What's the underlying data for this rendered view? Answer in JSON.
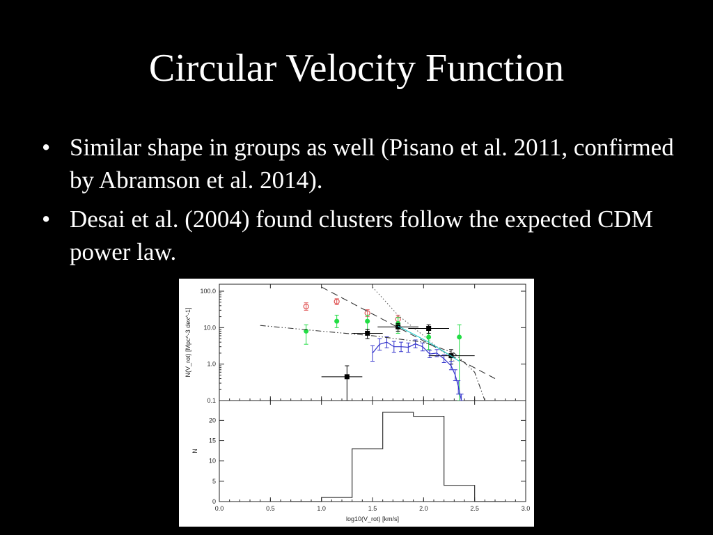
{
  "slide": {
    "title": "Circular Velocity Function",
    "bullet_glyph": "•",
    "bullets": [
      "Similar shape in groups as well (Pisano et al. 2011, confirmed by Abramson et al. 2014).",
      "Desai et al. (2004) found clusters follow the expected CDM power law."
    ]
  },
  "chart_data": [
    {
      "type": "scatter",
      "ylabel": "N(V_rot) [Mpc^-3 dex^-1]",
      "xlim": [
        0.0,
        3.0
      ],
      "ylim": [
        0.1,
        100.0
      ],
      "y_scale": "log",
      "y_ticks": [
        "100.0",
        "10.0",
        "1.0",
        "0.1"
      ],
      "x_tick_labels_shown": false,
      "series": [
        {
          "marker": "open-circle",
          "color": "#e05555",
          "points": [
            {
              "x": 0.85,
              "y": 38,
              "yerr": [
                30,
                48
              ]
            },
            {
              "x": 1.15,
              "y": 52,
              "yerr": [
                43,
                62
              ]
            },
            {
              "x": 1.45,
              "y": 25,
              "yerr": [
                20,
                31
              ]
            },
            {
              "x": 1.75,
              "y": 17,
              "yerr": [
                13,
                22
              ]
            }
          ]
        },
        {
          "marker": "filled-circle",
          "color": "#22dd44",
          "points": [
            {
              "x": 0.85,
              "y": 8,
              "yerr": [
                3.5,
                12
              ]
            },
            {
              "x": 1.15,
              "y": 15,
              "yerr": [
                10,
                22
              ]
            },
            {
              "x": 1.45,
              "y": 15,
              "yerr": [
                9,
                22
              ]
            },
            {
              "x": 1.75,
              "y": 13,
              "yerr": [
                7,
                19
              ]
            },
            {
              "x": 2.05,
              "y": 5.5,
              "yerr": [
                2.5,
                9
              ]
            },
            {
              "x": 2.35,
              "y": 5.5,
              "yerr": [
                0.1,
                12
              ]
            }
          ]
        },
        {
          "marker": "filled-square",
          "color": "#000000",
          "points": [
            {
              "x": 1.25,
              "y": 0.45,
              "yerr": [
                0.1,
                0.9
              ],
              "xerr": [
                1.0,
                1.4
              ]
            },
            {
              "x": 1.45,
              "y": 7.0,
              "yerr": [
                5,
                9
              ],
              "xerr": [
                1.3,
                1.6
              ]
            },
            {
              "x": 1.75,
              "y": 10.5,
              "yerr": [
                8,
                13
              ],
              "xerr": [
                1.55,
                1.95
              ]
            },
            {
              "x": 2.05,
              "y": 9.5,
              "yerr": [
                7,
                12
              ],
              "xerr": [
                1.85,
                2.25
              ]
            },
            {
              "x": 2.27,
              "y": 1.7,
              "yerr": [
                1.0,
                2.5
              ],
              "xerr": [
                2.05,
                2.5
              ]
            }
          ]
        },
        {
          "marker": "line-errorbar",
          "color": "#3333cc",
          "points": [
            {
              "x": 1.5,
              "y": 2.0,
              "yerr": [
                1.2,
                3.2
              ]
            },
            {
              "x": 1.57,
              "y": 3.5,
              "yerr": [
                2.4,
                5.0
              ]
            },
            {
              "x": 1.64,
              "y": 4.0,
              "yerr": [
                2.8,
                5.6
              ]
            },
            {
              "x": 1.71,
              "y": 3.0,
              "yerr": [
                2.1,
                4.2
              ]
            },
            {
              "x": 1.78,
              "y": 3.0,
              "yerr": [
                2.2,
                4.0
              ]
            },
            {
              "x": 1.85,
              "y": 2.9,
              "yerr": [
                2.1,
                3.8
              ]
            },
            {
              "x": 1.92,
              "y": 3.6,
              "yerr": [
                2.8,
                4.6
              ]
            },
            {
              "x": 1.99,
              "y": 3.0,
              "yerr": [
                2.3,
                3.8
              ]
            },
            {
              "x": 2.06,
              "y": 1.9,
              "yerr": [
                1.5,
                2.4
              ]
            },
            {
              "x": 2.13,
              "y": 2.0,
              "yerr": [
                1.6,
                2.5
              ]
            },
            {
              "x": 2.2,
              "y": 1.4,
              "yerr": [
                1.1,
                1.8
              ]
            },
            {
              "x": 2.27,
              "y": 0.9,
              "yerr": [
                0.7,
                1.2
              ]
            },
            {
              "x": 2.31,
              "y": 0.5,
              "yerr": [
                0.35,
                0.7
              ]
            },
            {
              "x": 2.34,
              "y": 0.25,
              "yerr": [
                0.15,
                0.35
              ]
            },
            {
              "x": 2.37,
              "y": 0.1,
              "yerr": [
                0.1,
                0.15
              ]
            }
          ]
        },
        {
          "line": "dashed",
          "color": "#333333",
          "points": [
            {
              "x": 1.0,
              "y": 130
            },
            {
              "x": 2.7,
              "y": 0.4
            }
          ]
        },
        {
          "line": "dotted",
          "color": "#555555",
          "points": [
            {
              "x": 1.5,
              "y": 130
            },
            {
              "x": 1.75,
              "y": 22
            },
            {
              "x": 2.0,
              "y": 6
            },
            {
              "x": 2.3,
              "y": 1.2
            }
          ]
        },
        {
          "line": "dash-dot-dot",
          "color": "#333333",
          "points": [
            {
              "x": 0.4,
              "y": 11.5
            },
            {
              "x": 1.0,
              "y": 8
            },
            {
              "x": 1.5,
              "y": 6
            },
            {
              "x": 2.0,
              "y": 4
            },
            {
              "x": 2.3,
              "y": 2.0
            },
            {
              "x": 2.5,
              "y": 0.6
            },
            {
              "x": 2.6,
              "y": 0.1
            }
          ]
        },
        {
          "line": "solid",
          "color": "#22cccc",
          "points": [
            {
              "x": 1.75,
              "y": 11
            },
            {
              "x": 2.05,
              "y": 4
            },
            {
              "x": 2.35,
              "y": 1.2
            }
          ]
        }
      ]
    },
    {
      "type": "histogram",
      "xlabel": "log10(V_rot) [km/s]",
      "ylabel": "N",
      "xlim": [
        0.0,
        3.0
      ],
      "ylim": [
        0,
        23.5
      ],
      "x_ticks": [
        "0.0",
        "0.5",
        "1.0",
        "1.5",
        "2.0",
        "2.5",
        "3.0"
      ],
      "y_ticks": [
        "0",
        "5",
        "10",
        "15",
        "20"
      ],
      "bins": [
        {
          "x0": 0.7,
          "x1": 1.0,
          "value": 0
        },
        {
          "x0": 1.0,
          "x1": 1.3,
          "value": 1
        },
        {
          "x0": 1.3,
          "x1": 1.6,
          "value": 13
        },
        {
          "x0": 1.6,
          "x1": 1.9,
          "value": 22
        },
        {
          "x0": 1.9,
          "x1": 2.2,
          "value": 21
        },
        {
          "x0": 2.2,
          "x1": 2.5,
          "value": 4
        },
        {
          "x0": 2.5,
          "x1": 2.8,
          "value": 0
        }
      ]
    }
  ]
}
